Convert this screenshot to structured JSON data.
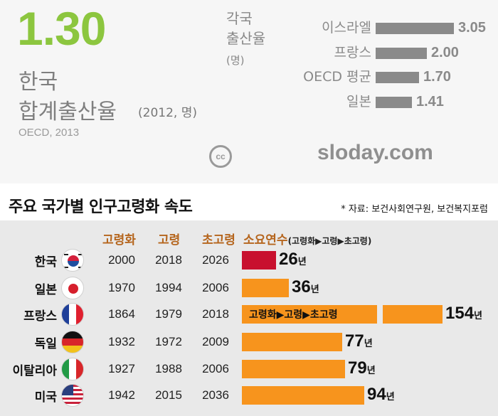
{
  "colors": {
    "accent_green": "#8cc63f",
    "rate_bar": "#8a8a8a",
    "korea_bar": "#c8102e",
    "aging_bar": "#f7941d",
    "header_text": "#b5651d"
  },
  "header": {
    "rate": "1.30",
    "title_line1": "한국",
    "title_line2": "합계출산율",
    "note": "(2012, 명)",
    "source": "OECD, 2013"
  },
  "comparison": {
    "heading_line1": "각국",
    "heading_line2": "출산율",
    "unit": "(명)"
  },
  "watermark": {
    "cc": "cc",
    "site": "sloday.com"
  },
  "aging_section": {
    "title": "주요 국가별 인구고령화 속도",
    "source": "* 자료: 보건사회연구원, 보건복지포럼",
    "headers": {
      "aging": "고령화",
      "aged": "고령",
      "super_aged": "초고령",
      "years": "소요연수",
      "years_sub": "(고령화▶고령▶초고령)"
    },
    "unit": "년",
    "stage_label": "고령화▶고령▶초고령",
    "flag_icons": [
      "korea-flag-icon",
      "japan-flag-icon",
      "france-flag-icon",
      "germany-flag-icon",
      "italy-flag-icon",
      "usa-flag-icon"
    ]
  },
  "chart_data": [
    {
      "type": "bar",
      "orientation": "horizontal",
      "title": "",
      "categories": [
        "이스라엘",
        "프랑스",
        "OECD 평균",
        "일본"
      ],
      "series": [
        {
          "values": [
            3.05,
            2.0,
            1.7,
            1.41
          ],
          "labels": [
            "3.05",
            "2.00",
            "1.70",
            "1.41"
          ]
        }
      ],
      "xlim": [
        0,
        3.05
      ]
    },
    {
      "type": "bar",
      "orientation": "horizontal",
      "title": "주요 국가별 인구고령화 속도",
      "categories": [
        "한국",
        "일본",
        "프랑스",
        "독일",
        "이탈리아",
        "미국"
      ],
      "table": {
        "aging_year": [
          "2000",
          "1970",
          "1864",
          "1932",
          "1927",
          "1942"
        ],
        "aged_year": [
          "2018",
          "1994",
          "1979",
          "1972",
          "1988",
          "2015"
        ],
        "super_aged_year": [
          "2026",
          "2006",
          "2018",
          "2009",
          "2006",
          "2036"
        ]
      },
      "series": [
        {
          "values": [
            26,
            36,
            154,
            77,
            79,
            94
          ],
          "labels": [
            "26",
            "36",
            "154",
            "77",
            "79",
            "94"
          ]
        }
      ],
      "xlim": [
        0,
        154
      ]
    }
  ]
}
